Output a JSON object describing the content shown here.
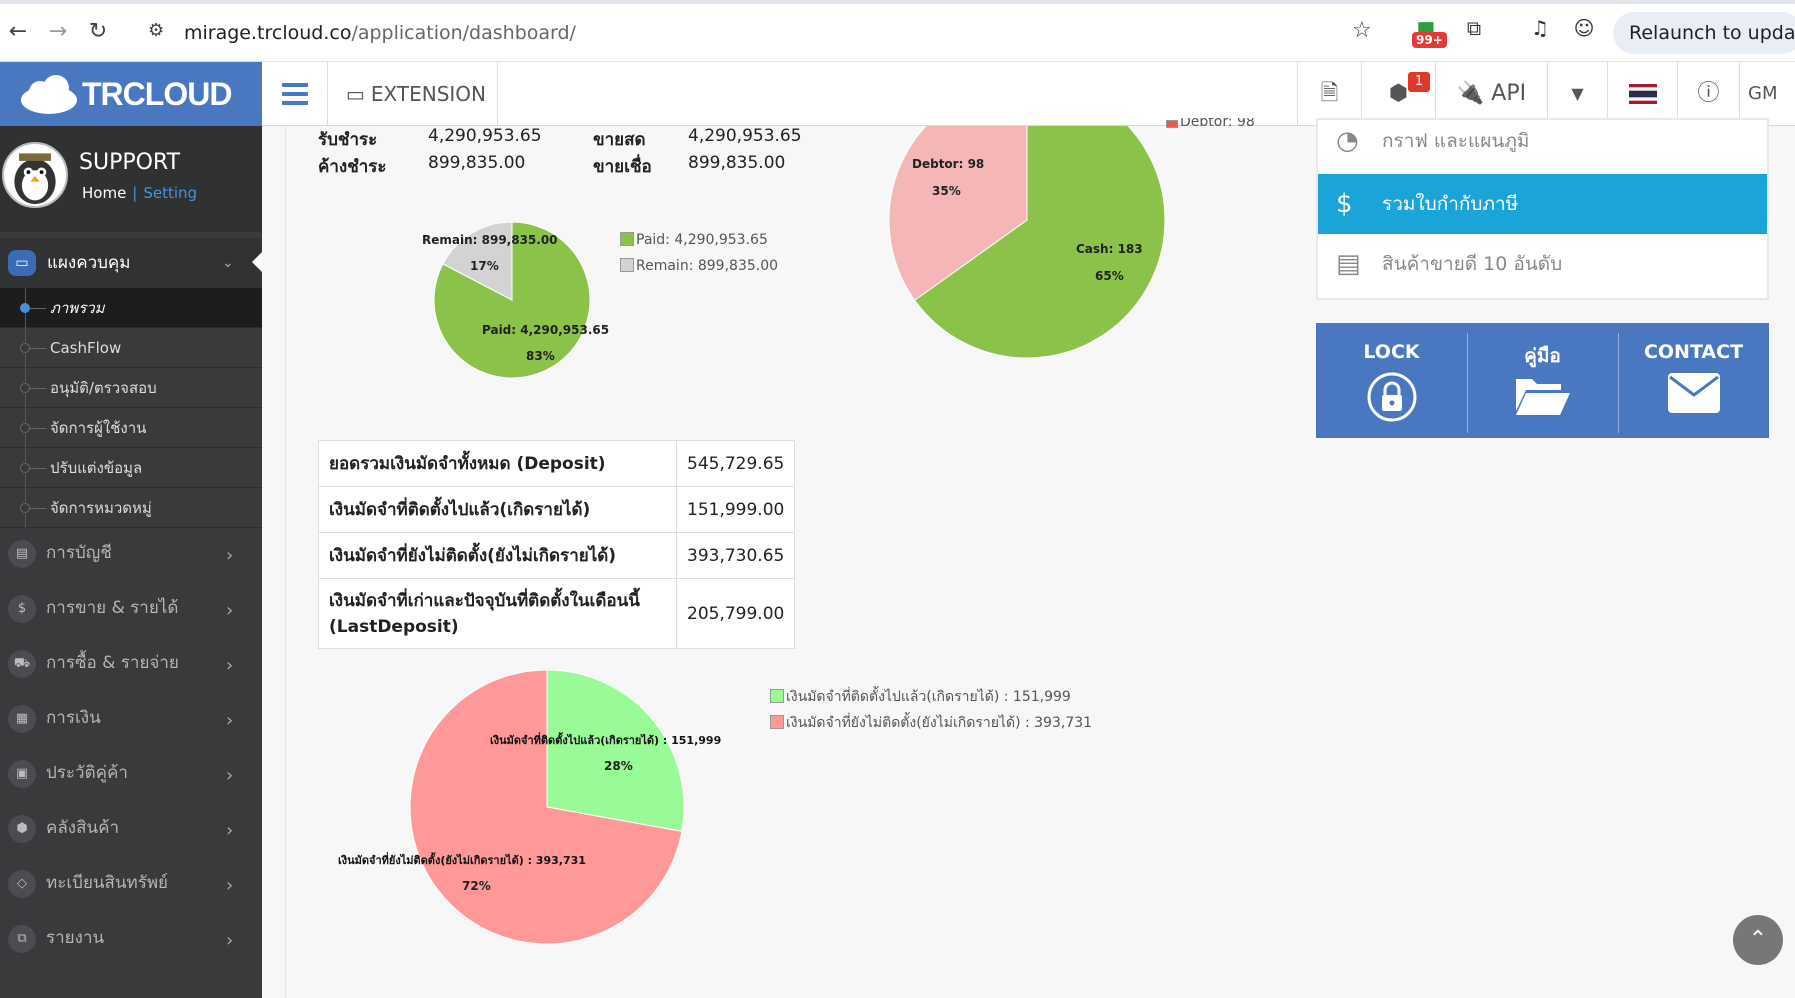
{
  "browser": {
    "url_host": "mirage.trcloud.co",
    "url_path": "/application/dashboard/",
    "ext_badge": "99+",
    "relaunch_label": "Relaunch to update"
  },
  "header": {
    "logo_text": "TRCLOUD",
    "extension_label": "EXTENSION",
    "notification_count": "1",
    "api_label": "API",
    "gm_label": "GM"
  },
  "sidebar": {
    "profile_name": "SUPPORT",
    "home_link": "Home",
    "setting_link": "Setting",
    "main_menu": "แผงควบคุม",
    "sub_items": [
      "ภาพรวม",
      "CashFlow",
      "อนุมัติ/ตรวจสอบ",
      "จัดการผู้ใช้งาน",
      "ปรับแต่งข้อมูล",
      "จัดการหมวดหมู่"
    ],
    "categories": [
      "การบัญชี",
      "การขาย & รายได้",
      "การซื้อ & รายจ่าย",
      "การเงิน",
      "ประวัติคู่ค้า",
      "คลังสินค้า",
      "ทะเบียนสินทรัพย์",
      "รายงาน"
    ]
  },
  "summary": {
    "paid_label": "รับชำระ",
    "paid_value": "4,290,953.65",
    "remain_label": "ค้างชำระ",
    "remain_value": "899,835.00",
    "cash_sale_label": "ขายสด",
    "cash_sale_value": "4,290,953.65",
    "credit_sale_label": "ขายเชื่อ",
    "credit_sale_value": "899,835.00"
  },
  "pie_payment": {
    "remain_label": "Remain: 899,835.00",
    "remain_pct": "17%",
    "paid_label": "Paid: 4,290,953.65",
    "paid_pct": "83%",
    "legend_paid": "Paid: 4,290,953.65",
    "legend_remain": "Remain: 899,835.00",
    "values": [
      4290953.65,
      899835.0
    ],
    "colors": [
      "#8bc34a",
      "#d3d3d3"
    ]
  },
  "pie_debtor": {
    "legend_debtor": "Debtor: 98",
    "debtor_label": "Debtor: 98",
    "debtor_pct": "35%",
    "cash_label": "Cash: 183",
    "cash_pct": "65%",
    "values": [
      183,
      98
    ],
    "colors": [
      "#8bc34a",
      "#f4b6b6"
    ]
  },
  "deposit_table": [
    {
      "label": "ยอดรวมเงินมัดจำทั้งหมด (Deposit)",
      "value": "545,729.65"
    },
    {
      "label": "เงินมัดจำที่ติดตั้งไปแล้ว(เกิดรายได้)",
      "value": "151,999.00"
    },
    {
      "label": "เงินมัดจำที่ยังไม่ติดตั้ง(ยังไม่เกิดรายได้)",
      "value": "393,730.65"
    },
    {
      "label": "เงินมัดจำที่เก่าและปัจจุบันที่ติดตั้งในเดือนนี้ (LastDeposit)",
      "value": "205,799.00"
    }
  ],
  "pie_deposit": {
    "legend_installed": "เงินมัดจำที่ติดตั้งไปแล้ว(เกิดรายได้) : 151,999",
    "legend_pending": "เงินมัดจำที่ยังไม่ติดตั้ง(ยังไม่เกิดรายได้) : 393,731",
    "installed_label": "เงินมัดจำที่ติดตั้งไปแล้ว(เกิดรายได้) : 151,999",
    "installed_pct": "28%",
    "pending_label": "เงินมัดจำที่ยังไม่ติดตั้ง(ยังไม่เกิดรายได้) : 393,731",
    "pending_pct": "72%",
    "values": [
      151999,
      393731
    ],
    "colors": [
      "#98fb98",
      "#ff9999"
    ]
  },
  "right_menu": {
    "graph_label": "กราฟ และแผนภูมิ",
    "tax_label": "รวมใบกำกับภาษี",
    "top10_label": "สินค้าขายดี 10 อันดับ"
  },
  "quick_links": {
    "lock": "LOCK",
    "manual": "คู่มือ",
    "contact": "CONTACT"
  },
  "colors": {
    "brand": "#4a78c0",
    "active_menu": "#1aa4d8",
    "sidebar": "#383a3c"
  }
}
